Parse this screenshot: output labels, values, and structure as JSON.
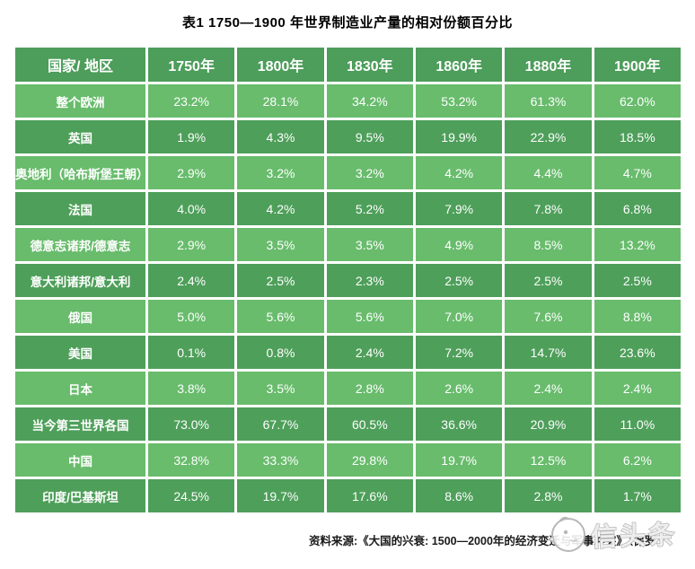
{
  "title": "表1  1750—1900 年世界制造业产量的相对份额百分比",
  "chart_data": {
    "type": "table",
    "title": "表1  1750—1900 年世界制造业产量的相对份额百分比",
    "unit": "%",
    "columns": [
      "国家/ 地区",
      "1750年",
      "1800年",
      "1830年",
      "1860年",
      "1880年",
      "1900年"
    ],
    "rows": [
      {
        "label": "整个欧洲",
        "values": [
          23.2,
          28.1,
          34.2,
          53.2,
          61.3,
          62.0
        ]
      },
      {
        "label": "英国",
        "values": [
          1.9,
          4.3,
          9.5,
          19.9,
          22.9,
          18.5
        ]
      },
      {
        "label": "奥地利（哈布斯堡王朝）",
        "values": [
          2.9,
          3.2,
          3.2,
          4.2,
          4.4,
          4.7
        ]
      },
      {
        "label": "法国",
        "values": [
          4.0,
          4.2,
          5.2,
          7.9,
          7.8,
          6.8
        ]
      },
      {
        "label": "德意志诸邦/德意志",
        "values": [
          2.9,
          3.5,
          3.5,
          4.9,
          8.5,
          13.2
        ]
      },
      {
        "label": "意大利诸邦/意大利",
        "values": [
          2.4,
          2.5,
          2.3,
          2.5,
          2.5,
          2.5
        ]
      },
      {
        "label": "俄国",
        "values": [
          5.0,
          5.6,
          5.6,
          7.0,
          7.6,
          8.8
        ]
      },
      {
        "label": "美国",
        "values": [
          0.1,
          0.8,
          2.4,
          7.2,
          14.7,
          23.6
        ]
      },
      {
        "label": "日本",
        "values": [
          3.8,
          3.5,
          2.8,
          2.6,
          2.4,
          2.4
        ]
      },
      {
        "label": "当今第三世界各国",
        "values": [
          73.0,
          67.7,
          60.5,
          36.6,
          20.9,
          11.0
        ]
      },
      {
        "label": "中国",
        "values": [
          32.8,
          33.3,
          29.8,
          19.7,
          12.5,
          6.2
        ]
      },
      {
        "label": "印度/巴基斯坦",
        "values": [
          24.5,
          19.7,
          17.6,
          8.6,
          2.8,
          1.7
        ]
      }
    ]
  },
  "footer": {
    "source": "资料来源:《大国的兴衰: 1500—2000年的经济变迁与军事冲突》（保罗·"
  },
  "watermark": {
    "icon": "cartoon-face-logo-icon",
    "text": "信头条"
  },
  "colors": {
    "header_green": "#4d9d5b",
    "row_light": "#68bc6c",
    "row_dark": "#4e9f5a",
    "cell_text": "#ffffff",
    "watermark_gray": "#b3b3b3"
  }
}
